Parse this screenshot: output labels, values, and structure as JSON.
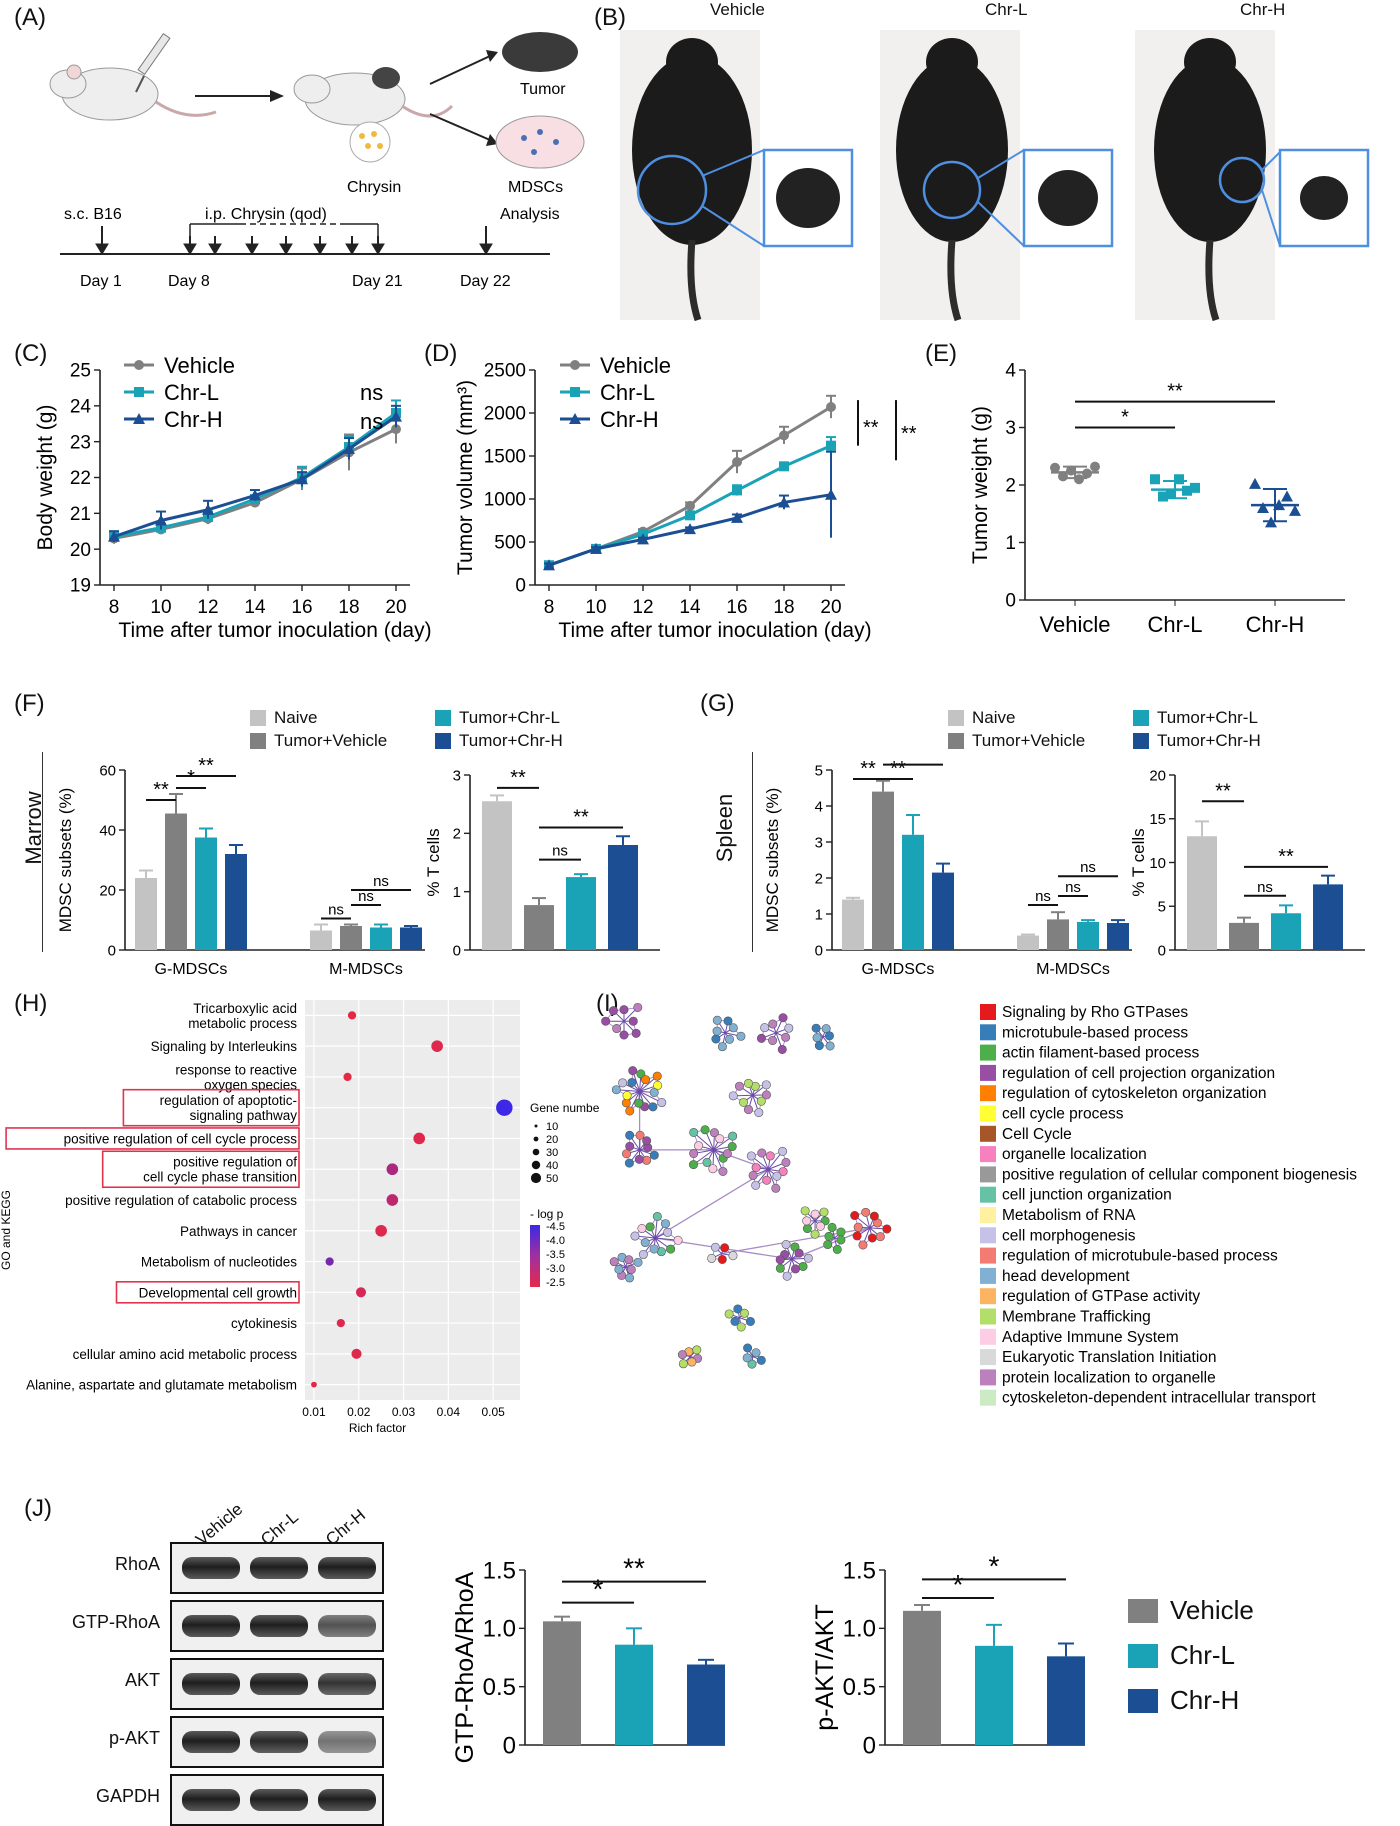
{
  "colors": {
    "vehicle": "#808080",
    "chrL": "#1aa3b6",
    "chrH": "#1b4e93",
    "naive": "#c3c3c3",
    "red": "#e2334d"
  },
  "panels": {
    "A": {
      "label": "(A)",
      "tumor": "Tumor",
      "chrysin": "Chrysin",
      "mdscs": "MDSCs",
      "timeline": {
        "sc": "s.c. B16",
        "ip": "i.p. Chrysin (qod)",
        "analysis": "Analysis",
        "days": [
          "Day 1",
          "Day 8",
          "Day 21",
          "Day 22"
        ]
      }
    },
    "B": {
      "label": "(B)",
      "groups": [
        "Vehicle",
        "Chr-L",
        "Chr-H"
      ]
    },
    "C": {
      "label": "(C)"
    },
    "D": {
      "label": "(D)"
    },
    "E": {
      "label": "(E)"
    },
    "F": {
      "label": "(F)",
      "side_label": "Marrow"
    },
    "G": {
      "label": "(G)",
      "side_label": "Spleen"
    },
    "H": {
      "label": "(H)"
    },
    "I": {
      "label": "(I)"
    },
    "J": {
      "label": "(J)",
      "lanes": [
        "Vehicle",
        "Chr-L",
        "Chr-H"
      ],
      "rows": [
        "RhoA",
        "GTP-RhoA",
        "AKT",
        "p-AKT",
        "GAPDH"
      ],
      "band_intensity": [
        [
          1,
          1,
          1
        ],
        [
          1,
          1,
          0.75
        ],
        [
          1,
          1,
          0.9
        ],
        [
          1,
          0.95,
          0.6
        ],
        [
          1,
          1,
          1
        ]
      ]
    }
  },
  "fg_legend": {
    "items": [
      "Naive",
      "Tumor+Chr-L",
      "Tumor+Vehicle",
      "Tumor+Chr-H"
    ]
  },
  "j_legend": {
    "items": [
      "Vehicle",
      "Chr-L",
      "Chr-H"
    ]
  },
  "chart_data": [
    {
      "id": "C",
      "type": "line",
      "xlabel": "Time after tumor inoculation (day)",
      "ylabel": "Body weight (g)",
      "x": [
        8,
        10,
        12,
        14,
        16,
        18,
        20
      ],
      "xticks": [
        8,
        10,
        12,
        14,
        16,
        18,
        20
      ],
      "ylim": [
        19,
        25
      ],
      "yticks": [
        19,
        20,
        21,
        22,
        23,
        24,
        25
      ],
      "series": [
        {
          "name": "Vehicle",
          "values": [
            20.3,
            20.55,
            20.85,
            21.3,
            21.95,
            22.7,
            23.35
          ],
          "err": [
            0.15,
            0.1,
            0.15,
            0.1,
            0.3,
            0.5,
            0.4
          ]
        },
        {
          "name": "Chr-L",
          "values": [
            20.35,
            20.6,
            20.9,
            21.4,
            22.0,
            22.85,
            23.8
          ],
          "err": [
            0.15,
            0.1,
            0.15,
            0.1,
            0.3,
            0.3,
            0.35
          ]
        },
        {
          "name": "Chr-H",
          "values": [
            20.35,
            20.8,
            21.1,
            21.5,
            21.95,
            22.8,
            23.7
          ],
          "err": [
            0.15,
            0.25,
            0.25,
            0.15,
            0.2,
            0.3,
            0.3
          ]
        }
      ],
      "annotations": [
        "ns",
        "ns"
      ]
    },
    {
      "id": "D",
      "type": "line",
      "xlabel": "Time after tumor inoculation (day)",
      "ylabel": "Tumor volume (mm³)",
      "x": [
        8,
        10,
        12,
        14,
        16,
        18,
        20
      ],
      "xticks": [
        8,
        10,
        12,
        14,
        16,
        18,
        20
      ],
      "ylim": [
        0,
        2500
      ],
      "yticks": [
        0,
        500,
        1000,
        1500,
        2000,
        2500
      ],
      "series": [
        {
          "name": "Vehicle",
          "values": [
            230,
            420,
            620,
            920,
            1430,
            1740,
            2070
          ],
          "err": [
            20,
            20,
            30,
            40,
            130,
            100,
            130
          ]
        },
        {
          "name": "Chr-L",
          "values": [
            230,
            420,
            590,
            810,
            1100,
            1380,
            1620
          ],
          "err": [
            20,
            20,
            20,
            40,
            60,
            40,
            100
          ]
        },
        {
          "name": "Chr-H",
          "values": [
            230,
            420,
            530,
            650,
            780,
            960,
            1050
          ],
          "err": [
            20,
            20,
            20,
            20,
            40,
            80,
            500
          ]
        }
      ],
      "annotations": [
        "**",
        "**"
      ]
    },
    {
      "id": "E",
      "type": "scatter",
      "ylabel": "Tumor weight (g)",
      "categories": [
        "Vehicle",
        "Chr-L",
        "Chr-H"
      ],
      "ylim": [
        0,
        4
      ],
      "yticks": [
        0,
        1,
        2,
        3,
        4
      ],
      "points": [
        [
          2.3,
          2.15,
          2.25,
          2.1,
          2.2,
          2.32
        ],
        [
          2.1,
          1.8,
          1.85,
          2.1,
          1.9,
          1.95
        ],
        [
          2.02,
          1.6,
          1.35,
          1.65,
          1.8,
          1.55
        ]
      ],
      "means": [
        2.22,
        1.92,
        1.65
      ],
      "sd": [
        0.1,
        0.15,
        0.28
      ],
      "annotations": [
        "*",
        "**"
      ]
    },
    {
      "id": "F1",
      "type": "bar",
      "ylabel": "MDSC subsets (%)",
      "categories": [
        "G-MDSCs",
        "M-MDSCs"
      ],
      "ylim": [
        0,
        60
      ],
      "yticks": [
        0,
        20,
        40,
        60
      ],
      "series": [
        {
          "name": "Naive",
          "values": [
            24,
            6.5
          ],
          "err": [
            2.5,
            2
          ]
        },
        {
          "name": "Tumor+Vehicle",
          "values": [
            45.5,
            8
          ],
          "err": [
            6.5,
            0.5
          ]
        },
        {
          "name": "Tumor+Chr-L",
          "values": [
            37.5,
            7.5
          ],
          "err": [
            3,
            1
          ]
        },
        {
          "name": "Tumor+Chr-H",
          "values": [
            32,
            7.5
          ],
          "err": [
            3,
            0.5
          ]
        }
      ],
      "annotations": [
        "**",
        "*",
        "**",
        "ns",
        "ns",
        "ns"
      ]
    },
    {
      "id": "F2",
      "type": "bar",
      "ylabel": "% T cells",
      "ylim": [
        0,
        3
      ],
      "yticks": [
        0,
        1,
        2,
        3
      ],
      "series": [
        {
          "name": "Naive",
          "values": [
            2.55
          ],
          "err": [
            0.1
          ]
        },
        {
          "name": "Tumor+Vehicle",
          "values": [
            0.77
          ],
          "err": [
            0.12
          ]
        },
        {
          "name": "Tumor+Chr-L",
          "values": [
            1.25
          ],
          "err": [
            0.05
          ]
        },
        {
          "name": "Tumor+Chr-H",
          "values": [
            1.8
          ],
          "err": [
            0.15
          ]
        }
      ],
      "annotations": [
        "**",
        "ns",
        "**"
      ]
    },
    {
      "id": "G1",
      "type": "bar",
      "ylabel": "MDSC subsets (%)",
      "categories": [
        "G-MDSCs",
        "M-MDSCs"
      ],
      "ylim": [
        0,
        5
      ],
      "yticks": [
        0,
        1,
        2,
        3,
        4,
        5
      ],
      "series": [
        {
          "name": "Naive",
          "values": [
            1.4,
            0.4
          ],
          "err": [
            0.05,
            0.03
          ]
        },
        {
          "name": "Tumor+Vehicle",
          "values": [
            4.4,
            0.85
          ],
          "err": [
            0.3,
            0.2
          ]
        },
        {
          "name": "Tumor+Chr-L",
          "values": [
            3.2,
            0.78
          ],
          "err": [
            0.55,
            0.05
          ]
        },
        {
          "name": "Tumor+Chr-H",
          "values": [
            2.15,
            0.75
          ],
          "err": [
            0.25,
            0.08
          ]
        }
      ],
      "annotations": [
        "**",
        "**",
        "**",
        "ns",
        "ns",
        "ns"
      ]
    },
    {
      "id": "G2",
      "type": "bar",
      "ylabel": "% T cells",
      "ylim": [
        0,
        20
      ],
      "yticks": [
        0,
        5,
        10,
        15,
        20
      ],
      "series": [
        {
          "name": "Naive",
          "values": [
            13
          ],
          "err": [
            1.7
          ]
        },
        {
          "name": "Tumor+Vehicle",
          "values": [
            3.1
          ],
          "err": [
            0.6
          ]
        },
        {
          "name": "Tumor+Chr-L",
          "values": [
            4.2
          ],
          "err": [
            0.9
          ]
        },
        {
          "name": "Tumor+Chr-H",
          "values": [
            7.5
          ],
          "err": [
            1
          ]
        }
      ],
      "annotations": [
        "**",
        "ns",
        "**"
      ]
    },
    {
      "id": "H",
      "type": "scatter",
      "xlabel": "Rich factor",
      "ylabel": "GO and KEGG",
      "xlim": [
        0.008,
        0.056
      ],
      "xticks": [
        0.01,
        0.02,
        0.03,
        0.04,
        0.05
      ],
      "xtick_labels": [
        "0.01",
        "0.02",
        "0.03",
        "0.04",
        "0.05"
      ],
      "categories": [
        "Tricarboxylic acid metabolic process",
        "Signaling by Interleukins",
        "response to reactive oxygen species",
        "regulation of apoptotic-signaling pathway",
        "positive regulation of cell cycle process",
        "positive regulation of cell cycle phase transition",
        "positive regulation of catabolic process",
        "Pathways in cancer",
        "Metabolism of nucleotides",
        "Developmental cell growth",
        "cytokinesis",
        "cellular amino acid metabolic process",
        "Alanine, aspartate and glutamate metabolism"
      ],
      "label_lines": [
        [
          "Tricarboxylic acid",
          "metabolic process"
        ],
        [
          "Signaling by Interleukins"
        ],
        [
          "response to reactive",
          "oxygen species"
        ],
        [
          "regulation of apoptotic-",
          "signaling pathway"
        ],
        [
          "positive regulation of cell cycle process"
        ],
        [
          "positive regulation of",
          "cell cycle phase transition"
        ],
        [
          "positive regulation of catabolic process"
        ],
        [
          "Pathways in cancer"
        ],
        [
          "Metabolism of nucleotides"
        ],
        [
          "Developmental cell growth"
        ],
        [
          "cytokinesis"
        ],
        [
          "cellular amino acid metabolic process"
        ],
        [
          "Alanine, aspartate and glutamate metabolism"
        ]
      ],
      "highlighted": [
        3,
        4,
        5,
        9
      ],
      "rich_factor": [
        0.0185,
        0.0375,
        0.0175,
        0.0525,
        0.0335,
        0.0275,
        0.0275,
        0.025,
        0.0135,
        0.0205,
        0.016,
        0.0195,
        0.01
      ],
      "gene_number": [
        10,
        20,
        10,
        40,
        20,
        20,
        20,
        20,
        10,
        15,
        10,
        15,
        5
      ],
      "neg_log_p": [
        -2.5,
        -2.6,
        -2.5,
        -4.5,
        -2.6,
        -3.2,
        -3.0,
        -2.6,
        -3.8,
        -2.7,
        -2.6,
        -2.6,
        -2.5
      ],
      "size_legend": {
        "title": "Gene number",
        "values": [
          "10",
          "20",
          "30",
          "40",
          "50"
        ]
      },
      "color_legend": {
        "title": "- log p",
        "values": [
          "-4.5",
          "-4.0",
          "-3.5",
          "-3.0",
          "-2.5"
        ]
      }
    },
    {
      "id": "I",
      "type": "network",
      "legend": [
        {
          "label": "Signaling by Rho GTPases",
          "color": "#e41a1c"
        },
        {
          "label": "microtubule-based process",
          "color": "#377eb8"
        },
        {
          "label": "actin filament-based process",
          "color": "#4daf4a"
        },
        {
          "label": "regulation of cell projection organization",
          "color": "#984ea3"
        },
        {
          "label": "regulation of cytoskeleton organization",
          "color": "#ff7f00"
        },
        {
          "label": "cell cycle process",
          "color": "#ffff33"
        },
        {
          "label": "Cell Cycle",
          "color": "#a65628"
        },
        {
          "label": "organelle localization",
          "color": "#f781bf"
        },
        {
          "label": "positive regulation of cellular component biogenesis",
          "color": "#999999"
        },
        {
          "label": "cell junction organization",
          "color": "#66c2a5"
        },
        {
          "label": "Metabolism of RNA",
          "color": "#fff1a0"
        },
        {
          "label": "cell morphogenesis",
          "color": "#c6c1e6"
        },
        {
          "label": "regulation of microtubule-based process",
          "color": "#f47b72"
        },
        {
          "label": "head development",
          "color": "#80b1d3"
        },
        {
          "label": "regulation of GTPase activity",
          "color": "#fdb462"
        },
        {
          "label": "Membrane Trafficking",
          "color": "#b3de69"
        },
        {
          "label": "Adaptive Immune System",
          "color": "#fccde5"
        },
        {
          "label": "Eukaryotic Translation Initiation",
          "color": "#d9d9d9"
        },
        {
          "label": "protein localization to organelle",
          "color": "#bc80bd"
        },
        {
          "label": "cytoskeleton-dependent intracellular transport",
          "color": "#ccebc5"
        }
      ]
    },
    {
      "id": "J1",
      "type": "bar",
      "ylabel": "GTP-RhoA/RhoA",
      "categories": [
        "Vehicle",
        "Chr-L",
        "Chr-H"
      ],
      "ylim": [
        0,
        1.5
      ],
      "yticks": [
        0,
        0.5,
        1.0,
        1.5
      ],
      "ytick_labels": [
        "0",
        "0.5",
        "1.0",
        "1.5"
      ],
      "values": [
        1.06,
        0.86,
        0.69
      ],
      "err": [
        0.04,
        0.14,
        0.04
      ],
      "annotations": [
        "*",
        "**"
      ]
    },
    {
      "id": "J2",
      "type": "bar",
      "ylabel": "p-AKT/AKT",
      "categories": [
        "Vehicle",
        "Chr-L",
        "Chr-H"
      ],
      "ylim": [
        0,
        1.5
      ],
      "yticks": [
        0,
        0.5,
        1.0,
        1.5
      ],
      "ytick_labels": [
        "0",
        "0.5",
        "1.0",
        "1.5"
      ],
      "values": [
        1.15,
        0.85,
        0.76
      ],
      "err": [
        0.05,
        0.18,
        0.11
      ],
      "annotations": [
        "*",
        "*"
      ]
    }
  ]
}
